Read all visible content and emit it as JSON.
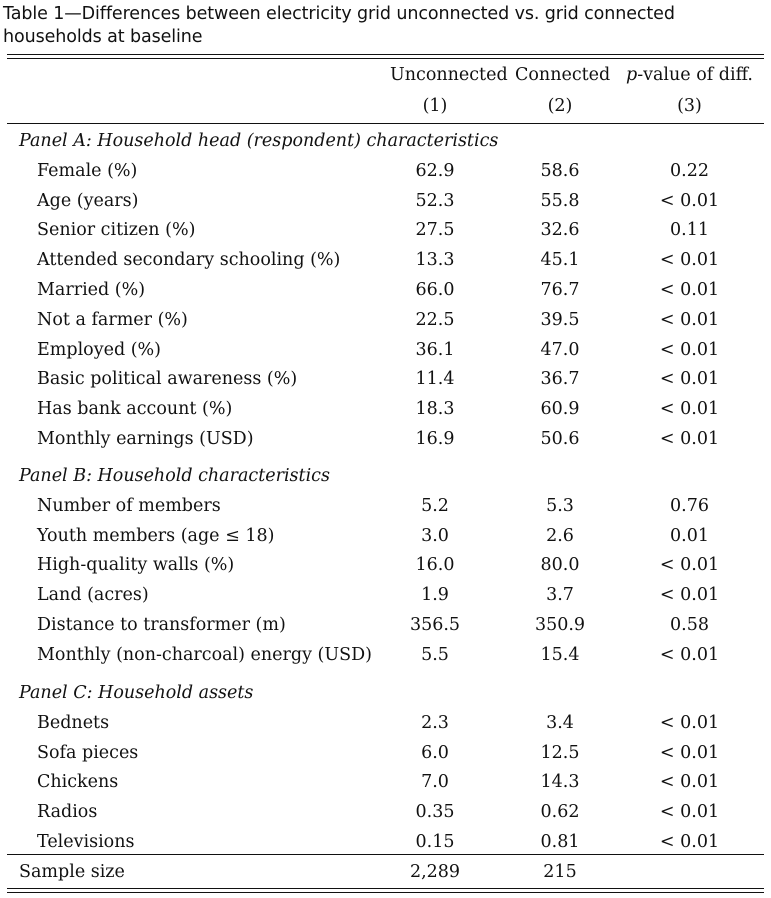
{
  "caption": "Table 1—Differences between electricity grid unconnected vs. grid connected households at baseline",
  "columns": {
    "headers": [
      "Unconnected",
      "Connected",
      "p-value of diff."
    ],
    "p_italic": "p",
    "p_rest": "-value of diff.",
    "numbers": [
      "(1)",
      "(2)",
      "(3)"
    ]
  },
  "panels": [
    {
      "title": "Panel A: Household head (respondent) characteristics",
      "rows": [
        {
          "label": "Female (%)",
          "v1": "62.9",
          "v2": "58.6",
          "p": "0.22"
        },
        {
          "label": "Age (years)",
          "v1": "52.3",
          "v2": "55.8",
          "p": "< 0.01"
        },
        {
          "label": "Senior citizen (%)",
          "v1": "27.5",
          "v2": "32.6",
          "p": "0.11"
        },
        {
          "label": "Attended secondary schooling (%)",
          "v1": "13.3",
          "v2": "45.1",
          "p": "< 0.01"
        },
        {
          "label": "Married (%)",
          "v1": "66.0",
          "v2": "76.7",
          "p": "< 0.01"
        },
        {
          "label": "Not a farmer (%)",
          "v1": "22.5",
          "v2": "39.5",
          "p": "< 0.01"
        },
        {
          "label": "Employed (%)",
          "v1": "36.1",
          "v2": "47.0",
          "p": "< 0.01"
        },
        {
          "label": "Basic political awareness (%)",
          "v1": "11.4",
          "v2": "36.7",
          "p": "< 0.01"
        },
        {
          "label": "Has bank account (%)",
          "v1": "18.3",
          "v2": "60.9",
          "p": "< 0.01"
        },
        {
          "label": "Monthly earnings (USD)",
          "v1": "16.9",
          "v2": "50.6",
          "p": "< 0.01"
        }
      ]
    },
    {
      "title": "Panel B: Household characteristics",
      "rows": [
        {
          "label": "Number of members",
          "v1": "5.2",
          "v2": "5.3",
          "p": "0.76"
        },
        {
          "label": "Youth members (age ≤ 18)",
          "v1": "3.0",
          "v2": "2.6",
          "p": "0.01"
        },
        {
          "label": "High-quality walls (%)",
          "v1": "16.0",
          "v2": "80.0",
          "p": "< 0.01"
        },
        {
          "label": "Land (acres)",
          "v1": "1.9",
          "v2": "3.7",
          "p": "< 0.01"
        },
        {
          "label": "Distance to transformer (m)",
          "v1": "356.5",
          "v2": "350.9",
          "p": "0.58"
        },
        {
          "label": "Monthly (non-charcoal) energy (USD)",
          "v1": "5.5",
          "v2": "15.4",
          "p": "< 0.01"
        }
      ]
    },
    {
      "title": "Panel C: Household assets",
      "rows": [
        {
          "label": "Bednets",
          "v1": "2.3",
          "v2": "3.4",
          "p": "< 0.01"
        },
        {
          "label": "Sofa pieces",
          "v1": "6.0",
          "v2": "12.5",
          "p": "< 0.01"
        },
        {
          "label": "Chickens",
          "v1": "7.0",
          "v2": "14.3",
          "p": "< 0.01"
        },
        {
          "label": "Radios",
          "v1": "0.35",
          "v2": "0.62",
          "p": "< 0.01"
        },
        {
          "label": "Televisions",
          "v1": "0.15",
          "v2": "0.81",
          "p": "< 0.01"
        }
      ]
    }
  ],
  "sample": {
    "label": "Sample size",
    "v1": "2,289",
    "v2": "215"
  }
}
